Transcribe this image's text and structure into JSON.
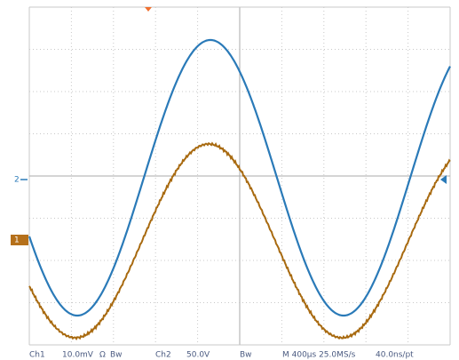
{
  "channels": {
    "ch1_marker": "1",
    "ch2_marker": "2"
  },
  "status_bar": {
    "ch1_label": "Ch1",
    "ch1_scale": "10.0mV",
    "ch1_coupling": "Ω",
    "ch1_bw": "Bw",
    "ch2_label": "Ch2",
    "ch2_scale": "50.0V",
    "ch2_bw": "Bw",
    "timebase": "M 400µs 25.0MS/s",
    "resolution": "40.0ns/pt"
  }
}
